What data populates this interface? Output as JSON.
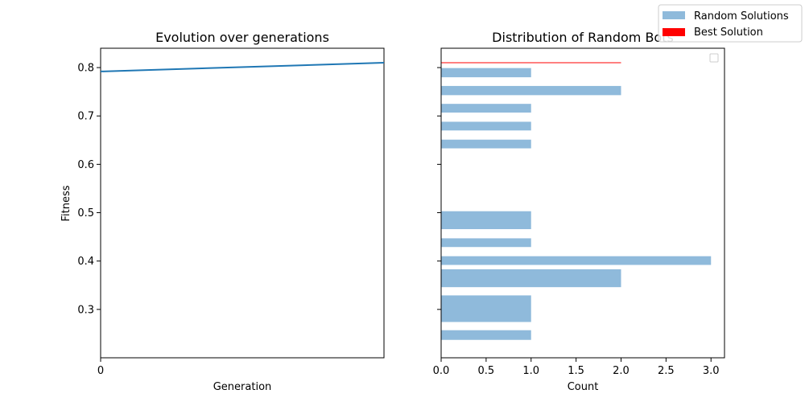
{
  "chart_data": [
    {
      "type": "line",
      "title": "Evolution over generations",
      "xlabel": "Generation",
      "ylabel": "Fitness",
      "x_ticks": [
        "0"
      ],
      "ylim": [
        0.2,
        0.84
      ],
      "y_ticks": [
        "0.3",
        "0.4",
        "0.5",
        "0.6",
        "0.7",
        "0.8"
      ],
      "series": [
        {
          "x": [
            0,
            1
          ],
          "y": [
            0.792,
            0.81
          ],
          "color": "#1f77b4"
        }
      ]
    },
    {
      "type": "bar",
      "orientation": "horizontal",
      "title": "Distribution of Random Bots",
      "xlabel": "Count",
      "ylabel": "",
      "xlim": [
        0,
        3.15
      ],
      "x_ticks": [
        "0.0",
        "0.5",
        "1.0",
        "1.5",
        "2.0",
        "2.5",
        "3.0"
      ],
      "bars": [
        {
          "y_low": 0.237,
          "y_high": 0.257,
          "count": 1
        },
        {
          "y_low": 0.274,
          "y_high": 0.329,
          "count": 1
        },
        {
          "y_low": 0.346,
          "y_high": 0.383,
          "count": 2
        },
        {
          "y_low": 0.392,
          "y_high": 0.41,
          "count": 3
        },
        {
          "y_low": 0.429,
          "y_high": 0.447,
          "count": 1
        },
        {
          "y_low": 0.466,
          "y_high": 0.503,
          "count": 1
        },
        {
          "y_low": 0.633,
          "y_high": 0.651,
          "count": 1
        },
        {
          "y_low": 0.67,
          "y_high": 0.688,
          "count": 1
        },
        {
          "y_low": 0.707,
          "y_high": 0.725,
          "count": 1
        },
        {
          "y_low": 0.743,
          "y_high": 0.762,
          "count": 2
        },
        {
          "y_low": 0.78,
          "y_high": 0.799,
          "count": 1
        }
      ],
      "best_solution": {
        "fitness": 0.81,
        "count": 2
      },
      "colors": {
        "random": "#8fbadb",
        "best": "#ff0000"
      }
    }
  ],
  "legend": {
    "items": [
      {
        "label": "Random Solutions",
        "color": "#8fbadb"
      },
      {
        "label": "Best Solution",
        "color": "#ff0000"
      }
    ]
  }
}
